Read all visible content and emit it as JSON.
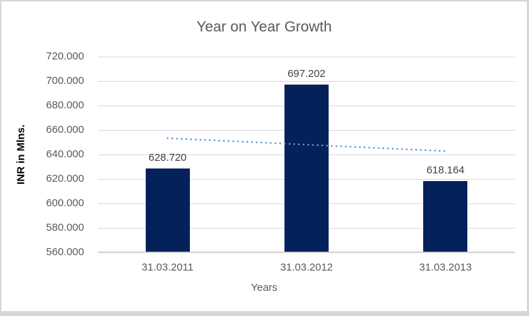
{
  "chart_data": {
    "type": "bar",
    "title": "Year on Year Growth",
    "xlabel": "Years",
    "ylabel": "INR in Mlns.",
    "ylim": [
      560,
      720
    ],
    "ytick_step": 20,
    "yticks": [
      {
        "value": 560,
        "label": "560.000"
      },
      {
        "value": 580,
        "label": "580.000"
      },
      {
        "value": 600,
        "label": "600.000"
      },
      {
        "value": 620,
        "label": "620.000"
      },
      {
        "value": 640,
        "label": "640.000"
      },
      {
        "value": 660,
        "label": "660.000"
      },
      {
        "value": 680,
        "label": "680.000"
      },
      {
        "value": 700,
        "label": "700.000"
      },
      {
        "value": 720,
        "label": "720.000"
      }
    ],
    "categories": [
      "31.03.2011",
      "31.03.2012",
      "31.03.2013"
    ],
    "values": [
      628.72,
      697.202,
      618.164
    ],
    "data_labels": [
      "628.720",
      "697.202",
      "618.164"
    ],
    "trendline": {
      "style": "dotted",
      "start_value": 653.31,
      "end_value": 642.75
    },
    "grid": true,
    "legend": "none",
    "colors": {
      "bar": "#05215A",
      "trend": "#5B9BD5",
      "gridline": "#D9D9D9",
      "axis_text": "#595959",
      "data_label": "#404040",
      "background": "#FFFFFF"
    }
  }
}
